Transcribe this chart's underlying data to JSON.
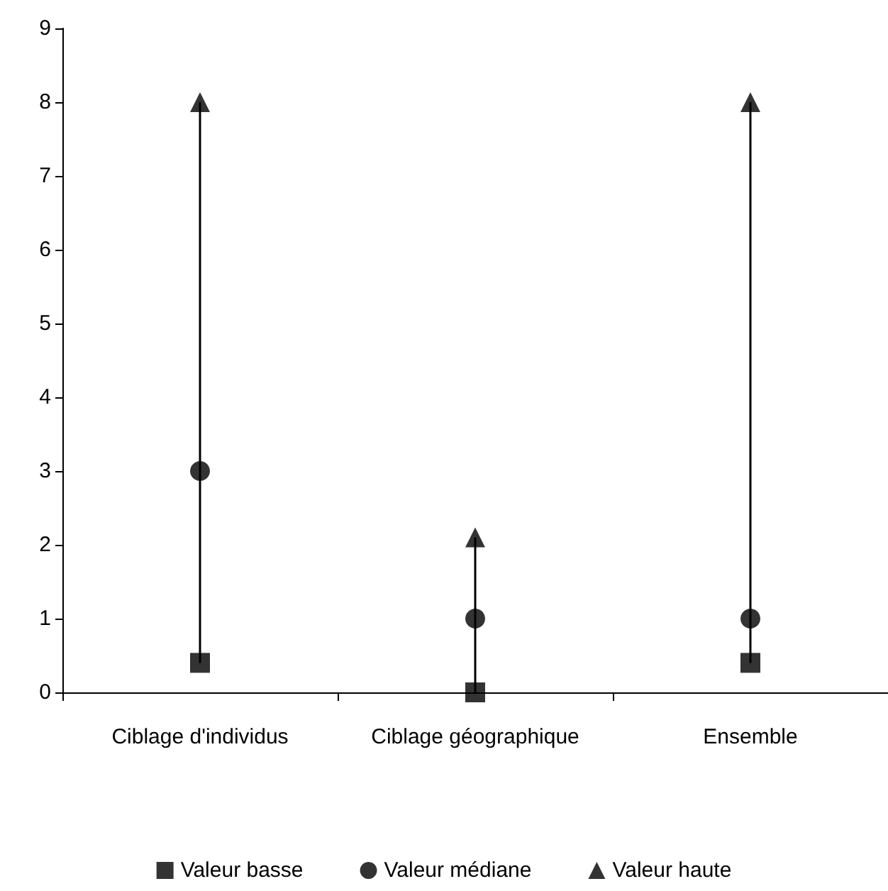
{
  "chart_data": {
    "type": "scatter",
    "categories": [
      "Ciblage d'individus",
      "Ciblage géographique",
      "Ensemble"
    ],
    "series": [
      {
        "type": "bar",
        "color": "#000000",
        "base": [
          0.4,
          0,
          0.4
        ],
        "values": [
          7.6,
          2.1,
          7.6
        ]
      },
      {
        "name": "Valeur basse",
        "color": "#000000",
        "marker": "square",
        "values": [
          0.4,
          0,
          0.4
        ]
      },
      {
        "name": "Valeur médiane",
        "color": "#000000",
        "marker": "circle",
        "values": [
          3,
          1,
          1
        ]
      },
      {
        "name": "Valeur haute",
        "color": "#000000",
        "marker": "triangle",
        "values": [
          8,
          2.1,
          8
        ]
      }
    ],
    "ylim": [
      0,
      9
    ],
    "yticks": [
      0,
      1,
      2,
      3,
      4,
      5,
      6,
      7,
      8,
      9
    ],
    "grid": false,
    "legend": "bottom"
  }
}
